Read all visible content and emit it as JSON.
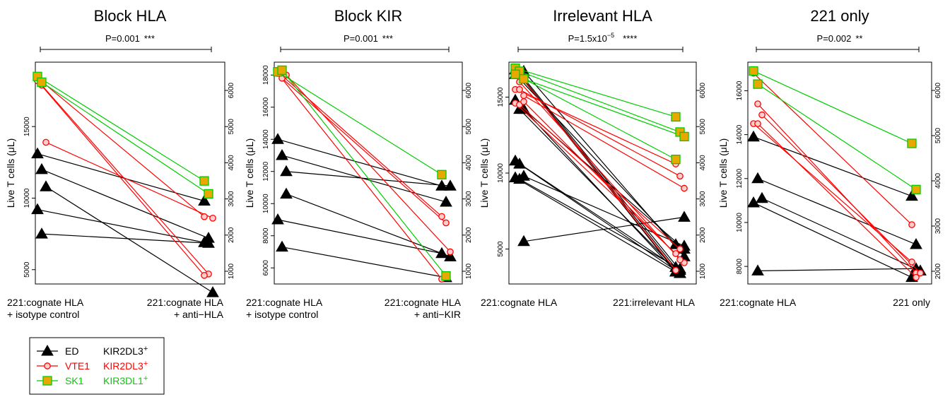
{
  "chart_data": [
    {
      "type": "line",
      "title": "Block HLA",
      "pvalue": {
        "text": "P=0.001",
        "stars": "***"
      },
      "ylabel": "Live T cells (μL)",
      "ylim": [
        4000,
        19500
      ],
      "yticks": [
        5000,
        10000,
        15000
      ],
      "yticks_right": [
        1000,
        2000,
        3000,
        4000,
        5000,
        6000
      ],
      "xticklabels": [
        [
          "221:cognate HLA",
          "+ isotype control"
        ],
        [
          "221:cognate HLA",
          "+ anti−HLA"
        ]
      ],
      "series": [
        {
          "name": "ED",
          "color": "#000000",
          "marker": "triangle",
          "pairs": [
            [
              13100,
              9800
            ],
            [
              12000,
              7200
            ],
            [
              10800,
              3400
            ],
            [
              9200,
              6900
            ],
            [
              7500,
              6850
            ]
          ]
        },
        {
          "name": "VTE1",
          "color": "#ff0000",
          "marker": "circle",
          "pairs": [
            [
              18400,
              8700
            ],
            [
              17900,
              4700
            ],
            [
              13900,
              8600
            ],
            [
              18200,
              4600
            ]
          ]
        },
        {
          "name": "SK1",
          "color": "#00cc00",
          "marker": "square",
          "pairs": [
            [
              18500,
              11200
            ],
            [
              18100,
              10300
            ]
          ]
        }
      ]
    },
    {
      "type": "line",
      "title": "Block KIR",
      "pvalue": {
        "text": "P=0.001",
        "stars": "***"
      },
      "ylabel": "Live T cells (μL)",
      "ylim": [
        5000,
        18800
      ],
      "yticks": [
        6000,
        8000,
        10000,
        12000,
        14000,
        16000,
        18000
      ],
      "yticks_right": [
        1000,
        2000,
        3000,
        4000,
        5000,
        6000
      ],
      "xticklabels": [
        [
          "221:cognate HLA",
          "+ isotype control"
        ],
        [
          "221:cognate HLA",
          "+ anti−KIR"
        ]
      ],
      "series": [
        {
          "name": "ED",
          "color": "#000000",
          "marker": "triangle",
          "pairs": [
            [
              14000,
              11100
            ],
            [
              13000,
              10100
            ],
            [
              10600,
              6700
            ],
            [
              9000,
              6900
            ],
            [
              7300,
              5400
            ],
            [
              12000,
              11100
            ]
          ]
        },
        {
          "name": "VTE1",
          "color": "#ff0000",
          "marker": "circle",
          "pairs": [
            [
              18200,
              9200
            ],
            [
              17800,
              8800
            ],
            [
              18000,
              7000
            ],
            [
              18100,
              5300
            ]
          ]
        },
        {
          "name": "SK1",
          "color": "#00cc00",
          "marker": "square",
          "pairs": [
            [
              18200,
              11800
            ],
            [
              18300,
              5500
            ]
          ]
        }
      ]
    },
    {
      "type": "line",
      "title": "Irrelevant HLA",
      "pvalue": {
        "text": "P=1.5x10",
        "exponent": "−5",
        "stars": "****"
      },
      "ylabel": "Live T cells (μL)",
      "ylim": [
        2700,
        17300
      ],
      "yticks": [
        5000,
        10000,
        15000
      ],
      "yticks_right": [
        1000,
        2000,
        3000,
        4000,
        5000,
        6000
      ],
      "xticklabels": [
        [
          "221:cognate HLA"
        ],
        [
          "221:irrelevant HLA"
        ]
      ],
      "series": [
        {
          "name": "ED",
          "color": "#000000",
          "marker": "triangle",
          "pairs": [
            [
              16800,
              3500
            ],
            [
              16600,
              3600
            ],
            [
              16700,
              4500
            ],
            [
              16500,
              5300
            ],
            [
              14200,
              3400
            ],
            [
              14200,
              5000
            ],
            [
              10800,
              3800
            ],
            [
              10600,
              3400
            ],
            [
              9800,
              5200
            ],
            [
              9700,
              3500
            ],
            [
              9600,
              3700
            ],
            [
              5500,
              7100
            ],
            [
              14800,
              3500
            ],
            [
              16500,
              3400
            ]
          ]
        },
        {
          "name": "VTE1",
          "color": "#ff0000",
          "marker": "circle",
          "pairs": [
            [
              15500,
              10600
            ],
            [
              15500,
              9800
            ],
            [
              15100,
              9000
            ],
            [
              14600,
              4700
            ],
            [
              14500,
              5000
            ],
            [
              14700,
              4100
            ],
            [
              16800,
              3600
            ],
            [
              16000,
              4300
            ]
          ]
        },
        {
          "name": "SK1",
          "color": "#00cc00",
          "marker": "square",
          "pairs": [
            [
              16900,
              13700
            ],
            [
              16700,
              12700
            ],
            [
              16200,
              12400
            ],
            [
              16500,
              10900
            ]
          ]
        }
      ]
    },
    {
      "type": "line",
      "title": "221 only",
      "pvalue": {
        "text": "P=0.002",
        "stars": "**"
      },
      "ylabel": "Live T cells (μL)",
      "ylim": [
        7200,
        17300
      ],
      "yticks": [
        8000,
        10000,
        12000,
        14000,
        16000
      ],
      "yticks_right": [
        2000,
        3000,
        4000,
        5000,
        6000
      ],
      "xticklabels": [
        [
          "221:cognate HLA"
        ],
        [
          "221 only"
        ]
      ],
      "series": [
        {
          "name": "ED",
          "color": "#000000",
          "marker": "triangle",
          "pairs": [
            [
              13900,
              11200
            ],
            [
              12000,
              9000
            ],
            [
              11100,
              7800
            ],
            [
              10900,
              7500
            ],
            [
              7800,
              7900
            ]
          ]
        },
        {
          "name": "VTE1",
          "color": "#ff0000",
          "marker": "circle",
          "pairs": [
            [
              16800,
              9900
            ],
            [
              15400,
              7700
            ],
            [
              14900,
              7700
            ],
            [
              14500,
              8200
            ],
            [
              14500,
              7500
            ]
          ]
        },
        {
          "name": "SK1",
          "color": "#00cc00",
          "marker": "square",
          "pairs": [
            [
              16900,
              13600
            ],
            [
              16300,
              11500
            ]
          ]
        }
      ]
    }
  ],
  "legend": {
    "placement": "bottom-left",
    "entries": [
      {
        "name": "ED",
        "receptor": "KIR2DL3",
        "sup": "+",
        "color": "#000000",
        "marker": "triangle"
      },
      {
        "name": "VTE1",
        "receptor": "KIR2DL3",
        "sup": "+",
        "color": "#ff0000",
        "marker": "circle"
      },
      {
        "name": "SK1",
        "receptor": "KIR3DL1",
        "sup": "+",
        "color": "#00cc00",
        "marker": "square"
      }
    ]
  },
  "styles": {
    "fill_circle": "#ffcccc",
    "fill_square": "#e8a800",
    "line_green": "#00cc00"
  }
}
